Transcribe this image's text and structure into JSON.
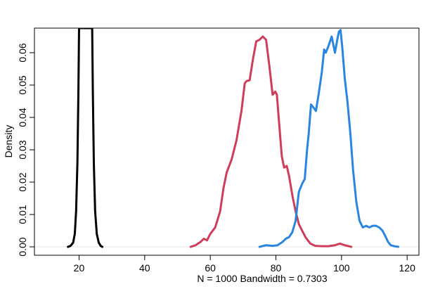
{
  "chart_data": {
    "type": "line",
    "title": "",
    "xlabel": "N = 1000   Bandwidth = 0.7303",
    "ylabel": "Density",
    "xlim": [
      6.4,
      123.6
    ],
    "ylim": [
      -0.0026,
      0.0676
    ],
    "x_ticks": [
      20,
      40,
      60,
      80,
      100,
      120
    ],
    "x_tick_labels": [
      "20",
      "40",
      "60",
      "80",
      "100",
      "120"
    ],
    "y_ticks": [
      0.0,
      0.01,
      0.02,
      0.03,
      0.04,
      0.05,
      0.06
    ],
    "y_tick_labels": [
      "0.00",
      "0.01",
      "0.02",
      "0.03",
      "0.04",
      "0.05",
      "0.06"
    ],
    "grid": false,
    "legend": "none",
    "baseline": {
      "y": 0,
      "color": "#e6e6e6"
    },
    "series": [
      {
        "color": "#000000",
        "x": [
          16.6,
          17.4,
          18.2,
          18.7,
          19.1,
          19.5,
          19.8,
          20.0,
          20.2,
          23.8,
          24.0,
          24.2,
          24.5,
          24.9,
          25.4,
          26.0,
          26.6,
          27.1
        ],
        "y": [
          0.0,
          0.0003,
          0.0013,
          0.004,
          0.011,
          0.026,
          0.048,
          0.0676,
          0.0676,
          0.0676,
          0.0676,
          0.048,
          0.026,
          0.011,
          0.004,
          0.0013,
          0.0003,
          0.0
        ]
      },
      {
        "color": "#d03c5c",
        "x": [
          54.0,
          55.5,
          57.0,
          58.0,
          59.0,
          60.0,
          61.5,
          63.0,
          64.0,
          65.0,
          66.5,
          68.0,
          69.5,
          70.5,
          71.0,
          72.0,
          73.0,
          74.0,
          75.0,
          76.0,
          77.0,
          78.0,
          79.0,
          79.8,
          80.3,
          81.0,
          81.8,
          82.5,
          83.3,
          84.0,
          85.0,
          86.0,
          87.0,
          88.0,
          89.0,
          90.5,
          92.0,
          94.0,
          96.0,
          98.0,
          99.5,
          101.0,
          103.0
        ],
        "y": [
          0.0,
          0.0005,
          0.0015,
          0.0025,
          0.002,
          0.004,
          0.006,
          0.011,
          0.018,
          0.023,
          0.027,
          0.033,
          0.042,
          0.0505,
          0.0512,
          0.0515,
          0.058,
          0.0635,
          0.064,
          0.065,
          0.064,
          0.056,
          0.047,
          0.048,
          0.047,
          0.038,
          0.028,
          0.0245,
          0.025,
          0.022,
          0.016,
          0.011,
          0.007,
          0.005,
          0.003,
          0.001,
          0.0003,
          0.0002,
          0.0002,
          0.0005,
          0.001,
          0.0005,
          0.0
        ]
      },
      {
        "color": "#2a85e0",
        "x": [
          75.0,
          77.0,
          79.0,
          80.5,
          82.0,
          83.0,
          84.0,
          85.0,
          86.0,
          87.0,
          88.0,
          88.8,
          89.5,
          90.0,
          90.7,
          91.5,
          92.2,
          93.0,
          94.0,
          94.7,
          95.2,
          96.0,
          97.0,
          98.0,
          98.7,
          99.2,
          99.7,
          100.2,
          101.0,
          101.8,
          102.7,
          103.5,
          104.5,
          105.5,
          106.5,
          107.5,
          108.5,
          109.5,
          110.5,
          111.5,
          112.5,
          113.0,
          113.5,
          114.2,
          115.0,
          116.0,
          117.3
        ],
        "y": [
          0.0,
          0.0005,
          0.0003,
          0.0005,
          0.0015,
          0.0025,
          0.003,
          0.0045,
          0.008,
          0.017,
          0.0195,
          0.021,
          0.03,
          0.035,
          0.044,
          0.043,
          0.042,
          0.047,
          0.054,
          0.061,
          0.06,
          0.062,
          0.065,
          0.06,
          0.064,
          0.0665,
          0.067,
          0.062,
          0.052,
          0.045,
          0.035,
          0.024,
          0.014,
          0.008,
          0.006,
          0.0065,
          0.006,
          0.0065,
          0.0065,
          0.006,
          0.005,
          0.004,
          0.003,
          0.0015,
          0.0005,
          0.0002,
          0.0
        ]
      }
    ]
  }
}
